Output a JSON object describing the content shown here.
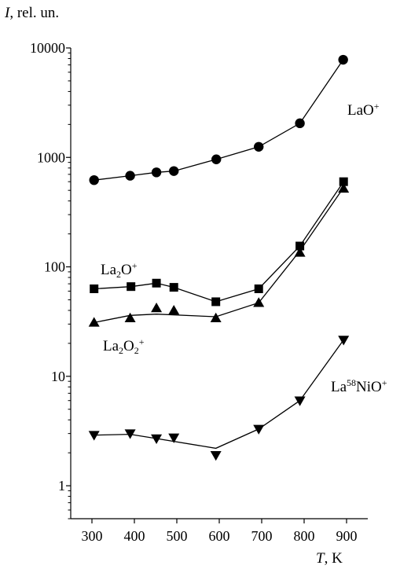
{
  "chart_data": {
    "type": "line",
    "title": "",
    "ylabel": {
      "symbol": "I",
      "rest": ", rel. un."
    },
    "xlabel": {
      "symbol": "T",
      "rest": ", K"
    },
    "y_scale": "log",
    "xlim": [
      250,
      950
    ],
    "ylim": [
      0.5,
      10000
    ],
    "x_ticks": [
      300,
      400,
      500,
      600,
      700,
      800,
      900
    ],
    "y_ticks": [
      1,
      10,
      100,
      1000,
      10000
    ],
    "y_tick_labels": [
      "1",
      "10",
      "100",
      "1000",
      "10000"
    ],
    "grid": false,
    "series": [
      {
        "name": "LaO+",
        "marker": "circle",
        "label": {
          "parts": [
            "LaO",
            "+"
          ],
          "styles": [
            "n",
            "sup"
          ]
        },
        "points": [
          {
            "x": 305,
            "y": 620
          },
          {
            "x": 390,
            "y": 680
          },
          {
            "x": 452,
            "y": 730
          },
          {
            "x": 493,
            "y": 750
          },
          {
            "x": 593,
            "y": 960
          },
          {
            "x": 693,
            "y": 1250
          },
          {
            "x": 790,
            "y": 2050
          },
          {
            "x": 892,
            "y": 7800
          }
        ],
        "line": [
          {
            "x": 305,
            "y": 620
          },
          {
            "x": 390,
            "y": 680
          },
          {
            "x": 452,
            "y": 730
          },
          {
            "x": 493,
            "y": 750
          },
          {
            "x": 593,
            "y": 960
          },
          {
            "x": 693,
            "y": 1250
          },
          {
            "x": 790,
            "y": 2050
          },
          {
            "x": 892,
            "y": 7800
          }
        ]
      },
      {
        "name": "La2O+",
        "marker": "square",
        "label": {
          "parts": [
            "La",
            "2",
            "O",
            "+"
          ],
          "styles": [
            "n",
            "sub",
            "n",
            "sup"
          ]
        },
        "points": [
          {
            "x": 305,
            "y": 63
          },
          {
            "x": 392,
            "y": 66
          },
          {
            "x": 452,
            "y": 71
          },
          {
            "x": 493,
            "y": 65
          },
          {
            "x": 592,
            "y": 48
          },
          {
            "x": 693,
            "y": 63
          },
          {
            "x": 790,
            "y": 155
          },
          {
            "x": 893,
            "y": 600
          }
        ],
        "line": [
          {
            "x": 305,
            "y": 63
          },
          {
            "x": 392,
            "y": 66
          },
          {
            "x": 452,
            "y": 71
          },
          {
            "x": 493,
            "y": 65
          },
          {
            "x": 592,
            "y": 48
          },
          {
            "x": 693,
            "y": 63
          },
          {
            "x": 790,
            "y": 155
          },
          {
            "x": 893,
            "y": 600
          }
        ]
      },
      {
        "name": "La2O2+",
        "marker": "triangle-up",
        "label": {
          "parts": [
            "La",
            "2",
            "O",
            "2",
            "+"
          ],
          "styles": [
            "n",
            "sub",
            "n",
            "sub",
            "sup"
          ]
        },
        "points": [
          {
            "x": 305,
            "y": 31
          },
          {
            "x": 390,
            "y": 34
          },
          {
            "x": 452,
            "y": 42
          },
          {
            "x": 493,
            "y": 40
          },
          {
            "x": 592,
            "y": 34
          },
          {
            "x": 693,
            "y": 47
          },
          {
            "x": 790,
            "y": 135
          },
          {
            "x": 893,
            "y": 520
          }
        ],
        "line": [
          {
            "x": 305,
            "y": 31
          },
          {
            "x": 390,
            "y": 36
          },
          {
            "x": 452,
            "y": 37
          },
          {
            "x": 592,
            "y": 35
          },
          {
            "x": 693,
            "y": 47
          },
          {
            "x": 790,
            "y": 140
          },
          {
            "x": 893,
            "y": 530
          }
        ]
      },
      {
        "name": "La58NiO+",
        "marker": "triangle-down",
        "label": {
          "parts": [
            "La",
            "58",
            "NiO",
            "+"
          ],
          "styles": [
            "n",
            "sup",
            "n",
            "sup"
          ]
        },
        "points": [
          {
            "x": 305,
            "y": 2.9
          },
          {
            "x": 390,
            "y": 3.0
          },
          {
            "x": 452,
            "y": 2.7
          },
          {
            "x": 493,
            "y": 2.75
          },
          {
            "x": 592,
            "y": 1.9
          },
          {
            "x": 693,
            "y": 3.3
          },
          {
            "x": 790,
            "y": 6.0
          },
          {
            "x": 893,
            "y": 21.5
          }
        ],
        "line": [
          {
            "x": 305,
            "y": 2.9
          },
          {
            "x": 390,
            "y": 2.95
          },
          {
            "x": 452,
            "y": 2.7
          },
          {
            "x": 592,
            "y": 2.2
          },
          {
            "x": 693,
            "y": 3.3
          },
          {
            "x": 790,
            "y": 6.0
          },
          {
            "x": 893,
            "y": 21.5
          }
        ]
      }
    ]
  }
}
